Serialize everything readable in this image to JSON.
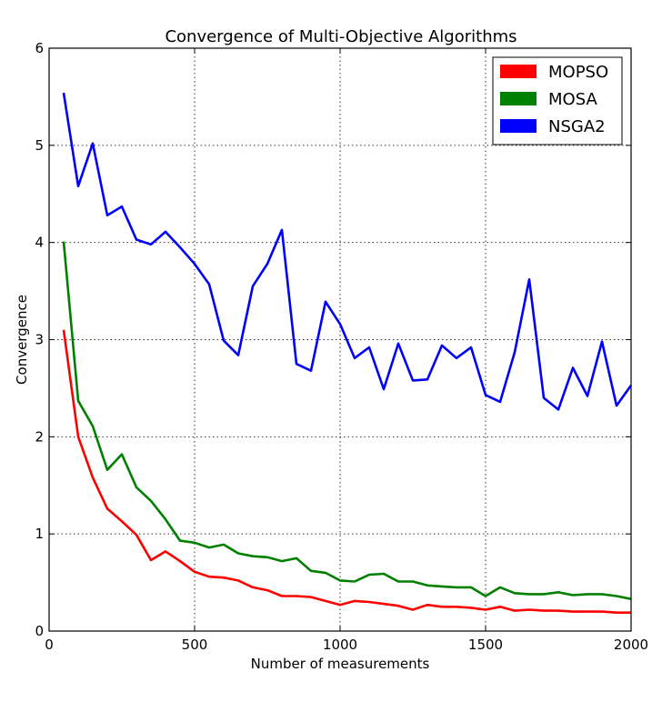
{
  "chart_data": {
    "type": "line",
    "title": "Convergence of Multi-Objective Algorithms",
    "xlabel": "Number of measurements",
    "ylabel": "Convergence",
    "xlim": [
      0,
      2000
    ],
    "ylim": [
      0,
      6
    ],
    "xticks": [
      0,
      500,
      1000,
      1500,
      2000
    ],
    "yticks": [
      0,
      1,
      2,
      3,
      4,
      5,
      6
    ],
    "grid": true,
    "legend_position": "top-right",
    "x": [
      50,
      100,
      150,
      200,
      250,
      300,
      350,
      400,
      450,
      500,
      550,
      600,
      650,
      700,
      750,
      800,
      850,
      900,
      950,
      1000,
      1050,
      1100,
      1150,
      1200,
      1250,
      1300,
      1350,
      1400,
      1450,
      1500,
      1550,
      1600,
      1650,
      1700,
      1750,
      1800,
      1850,
      1900,
      1950,
      2000
    ],
    "series": [
      {
        "name": "MOPSO",
        "color": "#ff0000",
        "values": [
          3.1,
          2.0,
          1.58,
          1.26,
          1.13,
          0.99,
          0.73,
          0.82,
          0.72,
          0.61,
          0.56,
          0.55,
          0.52,
          0.45,
          0.42,
          0.36,
          0.36,
          0.35,
          0.31,
          0.27,
          0.31,
          0.3,
          0.28,
          0.26,
          0.22,
          0.27,
          0.25,
          0.25,
          0.24,
          0.22,
          0.25,
          0.21,
          0.22,
          0.21,
          0.21,
          0.2,
          0.2,
          0.2,
          0.19,
          0.19
        ]
      },
      {
        "name": "MOSA",
        "color": "#008000",
        "values": [
          4.01,
          2.37,
          2.11,
          1.66,
          1.82,
          1.48,
          1.34,
          1.15,
          0.93,
          0.91,
          0.86,
          0.89,
          0.8,
          0.77,
          0.76,
          0.72,
          0.75,
          0.62,
          0.6,
          0.52,
          0.51,
          0.58,
          0.59,
          0.51,
          0.51,
          0.47,
          0.46,
          0.45,
          0.45,
          0.36,
          0.45,
          0.39,
          0.38,
          0.38,
          0.4,
          0.37,
          0.38,
          0.38,
          0.36,
          0.33
        ]
      },
      {
        "name": "NSGA2",
        "color": "#0000ff",
        "values": [
          5.54,
          4.58,
          5.02,
          4.28,
          4.37,
          4.03,
          3.98,
          4.11,
          3.95,
          3.78,
          3.57,
          2.99,
          2.84,
          3.55,
          3.78,
          4.13,
          2.75,
          2.68,
          3.39,
          3.16,
          2.81,
          2.92,
          2.49,
          2.96,
          2.58,
          2.59,
          2.94,
          2.81,
          2.92,
          2.43,
          2.36,
          2.87,
          3.62,
          2.4,
          2.28,
          2.71,
          2.42,
          2.98,
          2.32,
          2.53
        ]
      }
    ]
  }
}
